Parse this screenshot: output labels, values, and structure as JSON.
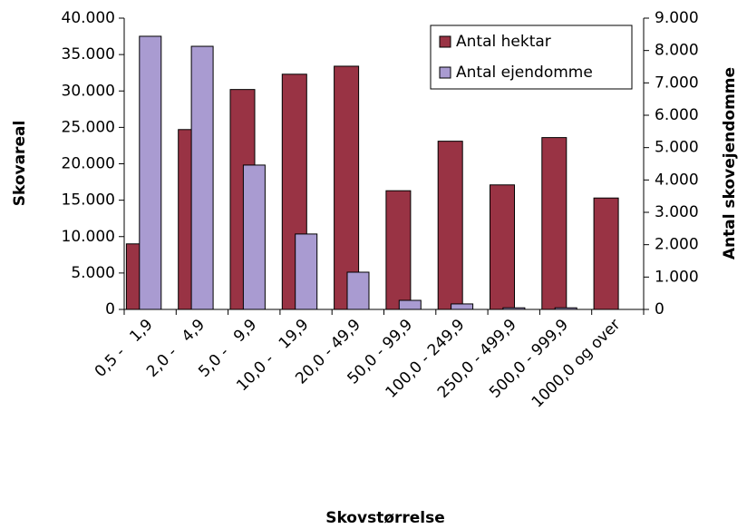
{
  "chart_data": {
    "type": "bar",
    "xlabel": "Skovstørrelse",
    "ylabel": "Skovareal",
    "y2label": "Antal skovejendomme",
    "categories": [
      "0,5 -   1,9",
      "2,0 -   4,9",
      "5,0 -   9,9",
      "10,0 -   19,9",
      "20,0 - 49,9",
      "50,0 - 99,9",
      "100,0 - 249,9",
      "250,0 - 499,9",
      "500,0 - 999,9",
      "1000,0 og over"
    ],
    "series": [
      {
        "name": "Antal hektar",
        "color": "#993344",
        "values": [
          9000,
          24700,
          30200,
          32300,
          33400,
          16300,
          23100,
          17100,
          23600,
          15300
        ]
      },
      {
        "name": "Antal ejendomme",
        "color": "#a99bd1",
        "axis": "y2",
        "values": [
          8440,
          8130,
          4460,
          2330,
          1150,
          280,
          170,
          50,
          50,
          0
        ]
      }
    ],
    "ylim": [
      0,
      40000
    ],
    "yticks": [
      0,
      {
        "value": 5000,
        "label": "5.000"
      },
      {
        "value": 10000,
        "label": "10.000"
      },
      {
        "value": 15000,
        "label": "15.000"
      },
      {
        "value": 20000,
        "label": "20.000"
      },
      {
        "value": 25000,
        "label": "25.000"
      },
      {
        "value": 30000,
        "label": "30.000"
      },
      {
        "value": 35000,
        "label": "35.000"
      },
      {
        "value": 40000,
        "label": "40.000"
      }
    ],
    "y2lim": [
      0,
      9000
    ],
    "y2ticks": [
      0,
      {
        "value": 1000,
        "label": "1.000"
      },
      {
        "value": 2000,
        "label": "2.000"
      },
      {
        "value": 3000,
        "label": "3.000"
      },
      {
        "value": 4000,
        "label": "4.000"
      },
      {
        "value": 5000,
        "label": "5.000"
      },
      {
        "value": 6000,
        "label": "6.000"
      },
      {
        "value": 7000,
        "label": "7.000"
      },
      {
        "value": 8000,
        "label": "8.000"
      },
      {
        "value": 9000,
        "label": "9.000"
      }
    ],
    "legend": "top-right",
    "grid": false
  }
}
